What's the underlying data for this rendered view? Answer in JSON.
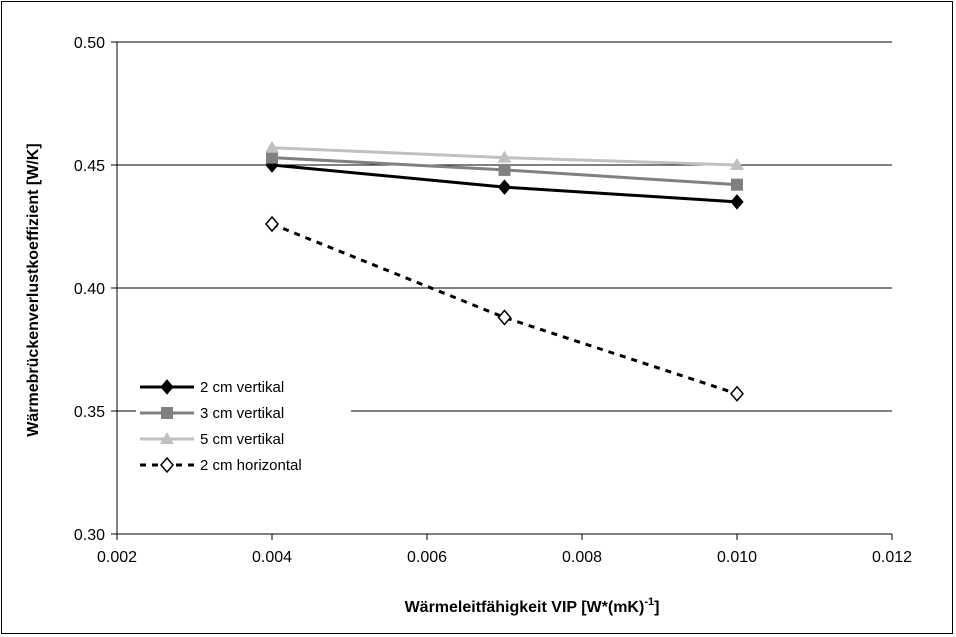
{
  "chart_data": {
    "type": "line",
    "title": "",
    "xlabel": "Wärmeleitfähigkeit VIP [W*(mK)",
    "xlabel_superscript": "-1",
    "xlabel_suffix": "]",
    "ylabel": "Wärmebrückenverlustkoeffizient [W/K]",
    "xlim": [
      0.002,
      0.012
    ],
    "ylim": [
      0.3,
      0.5
    ],
    "x_ticks": [
      "0.002",
      "0.004",
      "0.006",
      "0.008",
      "0.010",
      "0.012"
    ],
    "y_ticks": [
      "0.30",
      "0.35",
      "0.40",
      "0.45",
      "0.50"
    ],
    "grid": "horizontal",
    "legend_position": "left",
    "x": [
      0.004,
      0.007,
      0.01
    ],
    "series": [
      {
        "name": "2 cm vertikal",
        "values": [
          0.45,
          0.441,
          0.435
        ],
        "color": "#000000",
        "marker": "diamond",
        "dash": "solid"
      },
      {
        "name": "3 cm vertikal",
        "values": [
          0.453,
          0.448,
          0.442
        ],
        "color": "#808080",
        "marker": "square",
        "dash": "solid"
      },
      {
        "name": "5 cm vertikal",
        "values": [
          0.457,
          0.453,
          0.45
        ],
        "color": "#c0c0c0",
        "marker": "triangle",
        "dash": "solid"
      },
      {
        "name": "2 cm horizontal",
        "values": [
          0.426,
          0.388,
          0.357
        ],
        "color": "#000000",
        "marker": "diamond-open",
        "dash": "dashed"
      }
    ]
  }
}
